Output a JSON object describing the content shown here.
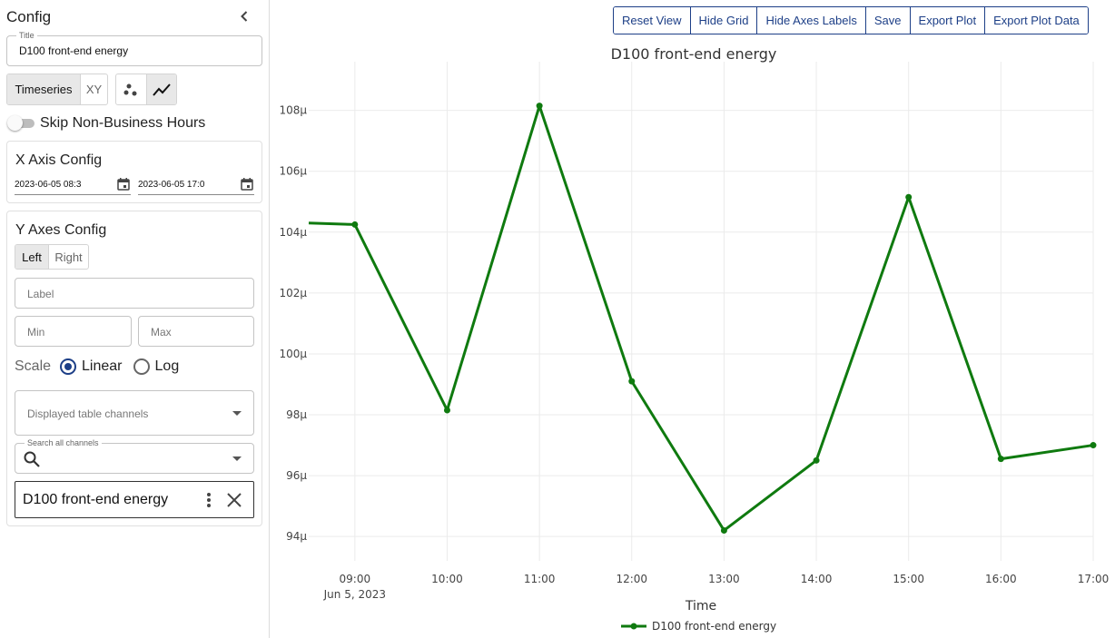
{
  "sidebar": {
    "header": "Config",
    "title_field": {
      "label": "Title",
      "value": "D100 front-end energy"
    },
    "mode_tabs": [
      {
        "label": "Timeseries",
        "active": true
      },
      {
        "label": "XY",
        "active": false
      }
    ],
    "plot_style": {
      "active": "line"
    },
    "skip_non_business_hours": {
      "label": "Skip Non-Business Hours",
      "on": false
    },
    "x_axis_config": {
      "title": "X Axis Config",
      "start": "2023-06-05 08:3",
      "end": "2023-06-05 17:0"
    },
    "y_axes_config": {
      "title": "Y Axes Config",
      "side_tabs": [
        {
          "label": "Left",
          "active": true
        },
        {
          "label": "Right",
          "active": false
        }
      ],
      "label_placeholder": "Label",
      "min_placeholder": "Min",
      "max_placeholder": "Max",
      "scale_label": "Scale",
      "scale_options": [
        {
          "label": "Linear",
          "selected": true
        },
        {
          "label": "Log",
          "selected": false
        }
      ],
      "displayed_channels_placeholder": "Displayed table channels",
      "search_label": "Search all channels",
      "channel_chip": "D100 front-end energy"
    }
  },
  "toolbar": {
    "buttons": [
      "Reset View",
      "Hide Grid",
      "Hide Axes Labels",
      "Save",
      "Export Plot",
      "Export Plot Data"
    ]
  },
  "colors": {
    "accent": "#1d3f87",
    "series": "#0f7a0f",
    "grid": "#ebebeb"
  },
  "chart_data": {
    "type": "line",
    "title": "D100 front-end energy",
    "xlabel": "Time",
    "ylabel": "",
    "x_tick_labels": [
      "09:00",
      "10:00",
      "11:00",
      "12:00",
      "13:00",
      "14:00",
      "15:00",
      "16:00",
      "17:00"
    ],
    "x_tick_date": "Jun 5, 2023",
    "y_tick_labels": [
      "94µ",
      "96µ",
      "98µ",
      "100µ",
      "102µ",
      "104µ",
      "106µ",
      "108µ"
    ],
    "x_range_hours": [
      8.5,
      17.0
    ],
    "ylim": [
      93.2,
      109.6
    ],
    "grid": true,
    "legend": "bottom-center",
    "series": [
      {
        "name": "D100 front-end energy",
        "color": "#0f7a0f",
        "x_hours": [
          8.5,
          9,
          10,
          11,
          12,
          13,
          14,
          15,
          16,
          17
        ],
        "values": [
          104.3,
          104.25,
          98.15,
          108.15,
          99.1,
          94.2,
          96.5,
          105.15,
          96.55,
          97.0
        ],
        "marker_start_index": 1
      }
    ]
  }
}
